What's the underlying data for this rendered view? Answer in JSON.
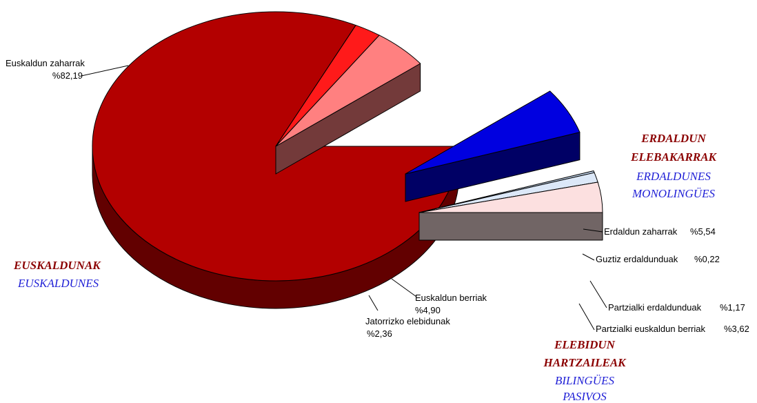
{
  "chart_data": {
    "type": "pie",
    "style": "3d-exploded",
    "slices": [
      {
        "key": "euskaldun_zaharrak",
        "name": "Euskaldun zaharrak",
        "value": 82.19,
        "value_label": "%82,19",
        "color": "#b30000"
      },
      {
        "key": "jatorrizko_elebidunak",
        "name": "Jatorrizko elebidunak",
        "value": 2.36,
        "value_label": "%2,36",
        "color": "#ff1a1a"
      },
      {
        "key": "euskaldun_berriak",
        "name": "Euskaldun berriak",
        "value": 4.9,
        "value_label": "%4,90",
        "color": "#ff8080"
      },
      {
        "key": "erdaldun_zaharrak",
        "name": "Erdaldun zaharrak",
        "value": 5.54,
        "value_label": "%5,54",
        "color": "#0000e0"
      },
      {
        "key": "guztiz_erdaldunduak",
        "name": "Guztiz erdaldunduak",
        "value": 0.22,
        "value_label": "%0,22",
        "color": "#c8dcf4"
      },
      {
        "key": "partzialki_erdaldunduak",
        "name": "Partzialki erdaldunduak",
        "value": 1.17,
        "value_label": "%1,17",
        "color": "#dce8f8"
      },
      {
        "key": "partzialki_euskaldun_berriak",
        "name": "Partzialki euskaldun berriak",
        "value": 3.62,
        "value_label": "%3,62",
        "color": "#fce0e0"
      }
    ],
    "groups": [
      {
        "key": "euskaldunak",
        "title": "EUSKALDUNAK",
        "subtitle": "EUSKALDUNES"
      },
      {
        "key": "erdaldun",
        "title_lines": [
          "ERDALDUN",
          "ELEBAKARRAK"
        ],
        "subtitle_lines": [
          "ERDALDUNES",
          "MONOLINGÜES"
        ]
      },
      {
        "key": "elebidun",
        "title_lines": [
          "ELEBIDUN",
          "HARTZAILEAK"
        ],
        "subtitle_lines": [
          "BILINGÜES",
          "PASIVOS"
        ]
      }
    ],
    "colors": {
      "group_title": "#8B0000",
      "group_subtitle": "#1f1fd6"
    }
  }
}
